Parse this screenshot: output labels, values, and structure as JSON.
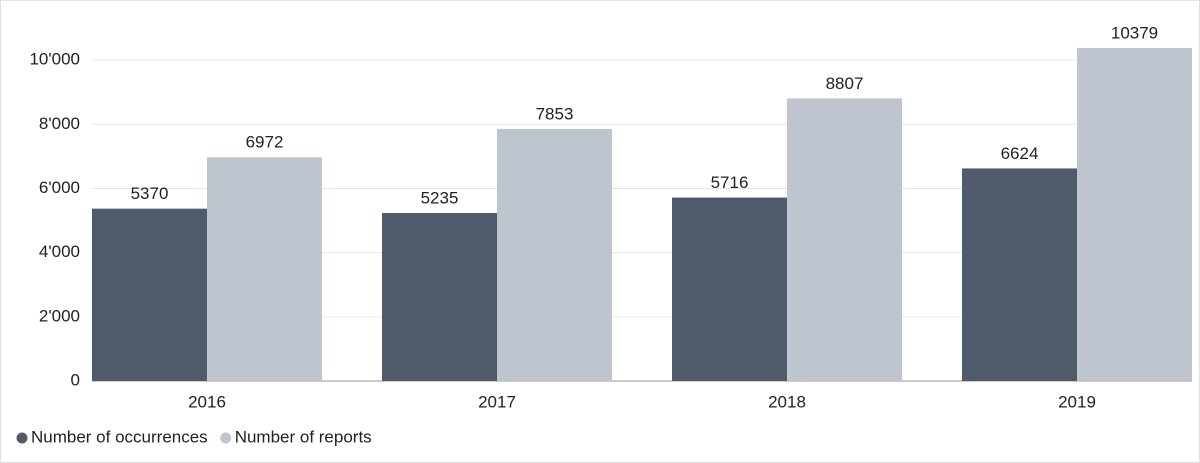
{
  "chart_data": {
    "type": "bar",
    "categories": [
      "2016",
      "2017",
      "2018",
      "2019"
    ],
    "series": [
      {
        "name": "Number of occurrences",
        "color": "#4f5b6b",
        "values": [
          5370,
          5235,
          5716,
          6624
        ]
      },
      {
        "name": "Number of reports",
        "color": "#bfc5cf",
        "values": [
          6972,
          7853,
          8807,
          10379
        ]
      }
    ],
    "ylim": [
      0,
      11000
    ],
    "yticks": [
      0,
      {
        "value": 2000,
        "label": "2'000"
      },
      {
        "value": 4000,
        "label": "4'000"
      },
      {
        "value": 6000,
        "label": "6'000"
      },
      {
        "value": 8000,
        "label": "8'000"
      },
      {
        "value": 10000,
        "label": "10'000"
      }
    ],
    "grid": true
  }
}
